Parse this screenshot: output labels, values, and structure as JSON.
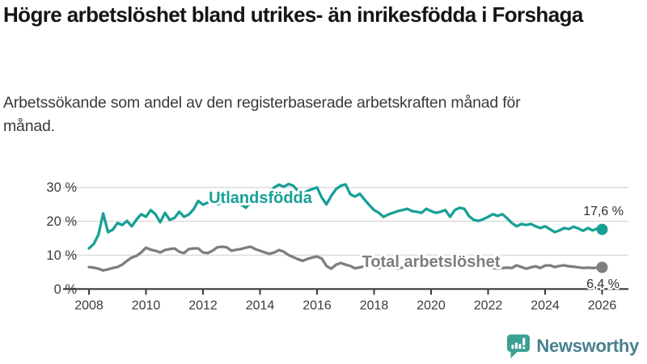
{
  "header": {
    "title": "Högre arbetslöshet bland utrikes- än inrikesfödda i Forshaga",
    "subtitle": "Arbetssökande som andel av den registerbaserade arbetskraften månad för månad."
  },
  "chart_data": {
    "type": "line",
    "title": "Högre arbetslöshet bland utrikes- än inrikesfödda i Forshaga",
    "unit": "%",
    "grid": true,
    "legend_position": "inline-labels",
    "x_start": 2008.0,
    "x_step_years": 0.16667,
    "x_axis": {
      "tick_labels": [
        "2008",
        "2010",
        "2012",
        "2014",
        "2016",
        "2018",
        "2020",
        "2022",
        "2024",
        "2026"
      ],
      "tick_years": [
        2008,
        2010,
        2012,
        2014,
        2016,
        2018,
        2020,
        2022,
        2024,
        2026
      ],
      "range": [
        2008,
        2026.6
      ]
    },
    "y_axis": {
      "ticks": [
        {
          "value": 0,
          "label": "0 %"
        },
        {
          "value": 10,
          "label": "10 %"
        },
        {
          "value": 20,
          "label": "20 %"
        },
        {
          "value": 30,
          "label": "30 %"
        }
      ],
      "range": [
        0,
        33
      ]
    },
    "series": [
      {
        "name": "Utlandsfödda",
        "color": "#18A095",
        "end_value": 17.6,
        "end_label": "17,6 %",
        "values": [
          12,
          13.3,
          16,
          22.3,
          16.8,
          17.5,
          19.5,
          18.9,
          20.1,
          18.5,
          20.5,
          22.1,
          21.3,
          23.3,
          22.1,
          19.7,
          22.5,
          20.4,
          21,
          22.8,
          21.3,
          22,
          23.5,
          26,
          24.9,
          25.5,
          26,
          25,
          25.5,
          26,
          25.5,
          26,
          25,
          24,
          25.5,
          26.5,
          27,
          27.5,
          28.5,
          30,
          30.8,
          30.2,
          31,
          30.5,
          29,
          28,
          29,
          29.5,
          30,
          27,
          25,
          27.5,
          29.5,
          30.5,
          30.9,
          28,
          27.3,
          28.1,
          26.4,
          24.8,
          23.3,
          22.5,
          21.3,
          22,
          22.5,
          23,
          23.3,
          23.7,
          23,
          22.8,
          22.5,
          23.7,
          23,
          22.5,
          22.8,
          23.3,
          21.3,
          23.3,
          24,
          23.7,
          21.5,
          20.4,
          20.1,
          20.6,
          21.3,
          22.1,
          21.6,
          22.1,
          20.9,
          19.5,
          18.5,
          19.2,
          18.9,
          19.2,
          18.5,
          18,
          18.5,
          17.7,
          16.8,
          17.3,
          18,
          17.7,
          18.4,
          17.9,
          17.2,
          18,
          17.3,
          17.9,
          17.6
        ]
      },
      {
        "name": "Total arbetslöshet",
        "color": "#7E7E7E",
        "end_value": 6.4,
        "end_label": "6,4 %",
        "values": [
          6.5,
          6.3,
          6,
          5.5,
          5.8,
          6.2,
          6.5,
          7.2,
          8.3,
          9.3,
          9.8,
          10.8,
          12.2,
          11.6,
          11.3,
          10.8,
          11.5,
          11.8,
          12,
          11,
          10.6,
          11.8,
          12,
          12,
          10.8,
          10.6,
          11.3,
          12.3,
          12.5,
          12.3,
          11.3,
          11.6,
          11.8,
          12.2,
          12.5,
          11.8,
          11.3,
          10.8,
          10.4,
          10.8,
          11.5,
          11,
          10,
          9.4,
          8.8,
          8.3,
          8.9,
          9.3,
          9.6,
          9,
          6.8,
          6,
          7.2,
          7.7,
          7.2,
          6.8,
          6.1,
          6.4,
          6.7,
          6.9,
          6.4,
          6.2,
          6.5,
          6.7,
          6.3,
          6.1,
          6.4,
          6.6,
          6.8,
          6.5,
          6.2,
          6.6,
          7.2,
          8.6,
          9,
          8.6,
          8.3,
          8,
          7.8,
          7.5,
          7.2,
          7,
          6.8,
          6.6,
          6.4,
          6.2,
          6.1,
          6.2,
          6.3,
          6.2,
          7,
          6.5,
          6,
          6.4,
          6.7,
          6.2,
          6.9,
          7,
          6.5,
          6.8,
          7,
          6.7,
          6.6,
          6.4,
          6.2,
          6.3,
          6.2,
          6.3,
          6.4
        ]
      }
    ],
    "colors": {
      "grid": "#D9D9D9",
      "axis": "#3B3B3B",
      "tick_text": "#3B3B3B",
      "value_label_text": "#2E2E2E"
    }
  },
  "footer": {
    "brand": "Newsworthy",
    "brand_color": "#49808E",
    "icon_color": "#3BA092"
  }
}
